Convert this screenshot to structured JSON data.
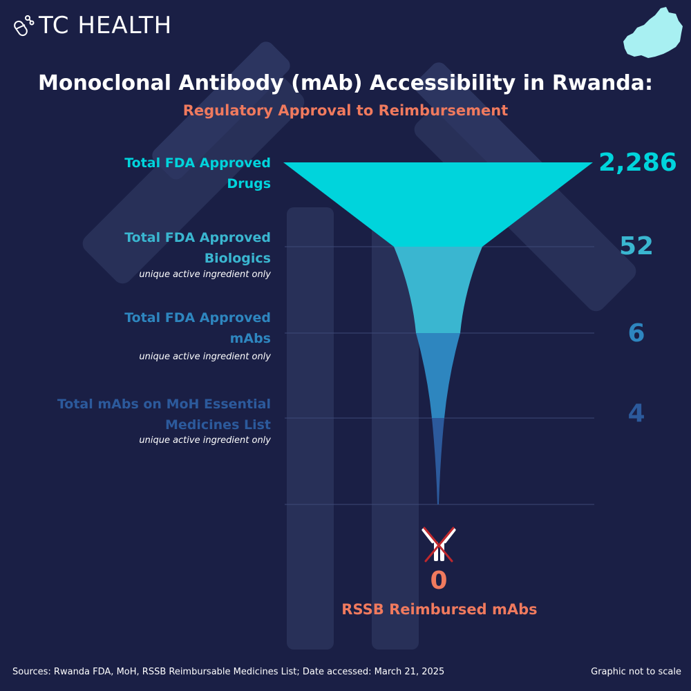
{
  "brand": {
    "name": "TC HEALTH",
    "logo_icon": "capsule-molecule-icon",
    "map_icon": "rwanda-map-icon"
  },
  "title": "Monoclonal Antibody (mAb) Accessibility in Rwanda:",
  "subtitle": "Regulatory Approval to Reimbursement",
  "colors": {
    "background": "#1a1f45",
    "stage1": "#00d4dc",
    "stage2": "#3ab6d0",
    "stage3": "#2e86bf",
    "stage4": "#2c5a9c",
    "accent": "#f07a5e",
    "guide": "#3e4a78"
  },
  "chart_data": {
    "type": "funnel",
    "title": "Monoclonal Antibody (mAb) Accessibility in Rwanda:",
    "subtitle": "Regulatory Approval to Reimbursement",
    "scale_note": "Graphic not to scale",
    "stages": [
      {
        "label_line1": "Total FDA Approved",
        "label_line2": "Drugs",
        "note": "",
        "value": 2286,
        "display": "2,286"
      },
      {
        "label_line1": "Total FDA Approved",
        "label_line2": "Biologics",
        "note": "unique active ingredient only",
        "value": 52,
        "display": "52"
      },
      {
        "label_line1": "Total FDA Approved",
        "label_line2": "mAbs",
        "note": "unique active ingredient only",
        "value": 6,
        "display": "6"
      },
      {
        "label_line1": "Total mAbs on MoH Essential",
        "label_line2": "Medicines List",
        "note": "unique active ingredient only",
        "value": 4,
        "display": "4"
      }
    ],
    "final": {
      "value": 0,
      "display": "0",
      "label": "RSSB Reimbursed mAbs",
      "icon": "crossed-antibody-icon"
    }
  },
  "footer": {
    "sources": "Sources: Rwanda FDA, MoH, RSSB Reimbursable Medicines List;  Date accessed: March 21, 2025",
    "note": "Graphic not to scale"
  }
}
